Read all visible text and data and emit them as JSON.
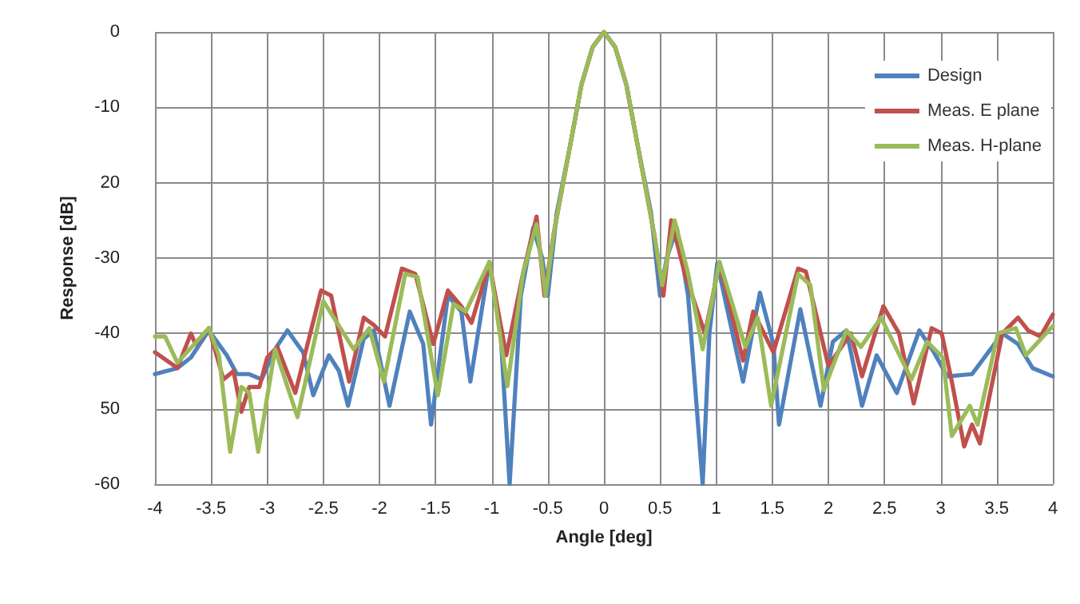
{
  "chart_data": {
    "type": "line",
    "xlabel": "Angle [deg]",
    "ylabel": "Response [dB]",
    "xlim": [
      -4,
      4
    ],
    "xticks": [
      -4,
      -3.5,
      -3,
      -2.5,
      -2,
      -1.5,
      -1,
      -0.5,
      0,
      0.5,
      1,
      1.5,
      2,
      2.5,
      3,
      3.5,
      4
    ],
    "ylim": [
      -60,
      0
    ],
    "yticks": [
      0,
      -10,
      {
        "value": -20,
        "label": "20"
      },
      -30,
      -40,
      {
        "value": -50,
        "label": "50"
      },
      -60
    ],
    "grid": true,
    "legend": "top right",
    "marker": "none",
    "line_style": "solid",
    "series": [
      {
        "name": "Design",
        "color": "#4f81bd",
        "x": [
          -4,
          -3.8,
          -3.68,
          -3.52,
          -3.36,
          -3.27,
          -3.16,
          -3.05,
          -2.93,
          -2.82,
          -2.68,
          -2.59,
          -2.45,
          -2.36,
          -2.28,
          -2.14,
          -2.05,
          -1.91,
          -1.73,
          -1.61,
          -1.54,
          -1.39,
          -1.27,
          -1.19,
          -1.02,
          -0.92,
          -0.84,
          -0.74,
          -0.63,
          -0.55,
          -0.5,
          -0.42,
          -0.3,
          -0.2,
          -0.1,
          0,
          0.1,
          0.2,
          0.3,
          0.42,
          0.5,
          0.56,
          0.65,
          0.75,
          0.88,
          0.94,
          1.01,
          1.24,
          1.39,
          1.51,
          1.56,
          1.75,
          1.93,
          2.04,
          2.16,
          2.3,
          2.43,
          2.61,
          2.81,
          2.94,
          3.06,
          3.28,
          3.55,
          3.69,
          3.82,
          4
        ],
        "values": [
          -45.4,
          -44.6,
          -43.2,
          -39.6,
          -42.9,
          -45.4,
          -45.4,
          -46.1,
          -42.1,
          -39.6,
          -42.5,
          -48.2,
          -42.9,
          -45,
          -49.6,
          -40.7,
          -39.6,
          -49.6,
          -37.1,
          -41.4,
          -52.1,
          -35,
          -37.1,
          -46.4,
          -30.5,
          -40,
          -60,
          -35,
          -26,
          -30,
          -35,
          -24,
          -15,
          -7,
          -2,
          0,
          -2,
          -7,
          -15,
          -24,
          -35,
          -30,
          -26,
          -35,
          -60,
          -40,
          -30.7,
          -46.4,
          -34.6,
          -41.4,
          -52.1,
          -36.8,
          -49.6,
          -41.1,
          -39.6,
          -49.6,
          -42.9,
          -47.9,
          -39.6,
          -42.5,
          -45.7,
          -45.4,
          -40,
          -41.4,
          -44.6,
          -45.7
        ]
      },
      {
        "name": "Meas. E plane",
        "color": "#c0504d",
        "x": [
          -4,
          -3.8,
          -3.68,
          -3.64,
          -3.52,
          -3.39,
          -3.3,
          -3.23,
          -3.16,
          -3.07,
          -3,
          -2.91,
          -2.75,
          -2.52,
          -2.43,
          -2.27,
          -2.14,
          -2.05,
          -1.95,
          -1.8,
          -1.68,
          -1.52,
          -1.39,
          -1.27,
          -1.18,
          -1.02,
          -0.87,
          -0.72,
          -0.6,
          -0.53,
          -0.45,
          -0.3,
          -0.2,
          -0.1,
          0,
          0.1,
          0.2,
          0.3,
          0.45,
          0.53,
          0.6,
          0.72,
          0.9,
          1.03,
          1.24,
          1.33,
          1.51,
          1.73,
          1.8,
          2,
          2.2,
          2.3,
          2.49,
          2.63,
          2.76,
          2.92,
          3.01,
          3.1,
          3.21,
          3.28,
          3.35,
          3.55,
          3.69,
          3.78,
          3.89,
          4
        ],
        "values": [
          -42.5,
          -44.6,
          -40,
          -41.4,
          -39.3,
          -46.1,
          -45,
          -50.4,
          -47.1,
          -47.1,
          -43.2,
          -41.8,
          -47.9,
          -34.3,
          -35,
          -46.4,
          -37.9,
          -38.9,
          -40.4,
          -31.4,
          -32.1,
          -41.4,
          -34.3,
          -36.4,
          -38.6,
          -30.7,
          -42.9,
          -32,
          -24.5,
          -35,
          -27,
          -15,
          -7,
          -2,
          0,
          -2,
          -7,
          -15,
          -27,
          -35,
          -25,
          -32,
          -40,
          -30.7,
          -43.6,
          -37.1,
          -42.5,
          -31.4,
          -31.8,
          -44.3,
          -40,
          -45.7,
          -36.4,
          -40,
          -49.3,
          -39.3,
          -40,
          -46.4,
          -55,
          -52.1,
          -54.6,
          -40,
          -37.9,
          -39.6,
          -40.4,
          -37.5
        ]
      },
      {
        "name": "Meas. H-plane",
        "color": "#9bbb59",
        "x": [
          -4,
          -3.91,
          -3.8,
          -3.52,
          -3.43,
          -3.33,
          -3.23,
          -3.16,
          -3.08,
          -2.93,
          -2.73,
          -2.5,
          -2.23,
          -2.09,
          -1.96,
          -1.77,
          -1.66,
          -1.48,
          -1.34,
          -1.23,
          -1.02,
          -0.86,
          -0.72,
          -0.6,
          -0.52,
          -0.45,
          -0.3,
          -0.2,
          -0.1,
          0,
          0.1,
          0.2,
          0.3,
          0.45,
          0.52,
          0.63,
          0.75,
          0.88,
          1.03,
          1.26,
          1.37,
          1.49,
          1.73,
          1.84,
          1.96,
          2.16,
          2.29,
          2.47,
          2.74,
          2.88,
          3.02,
          3.1,
          3.26,
          3.33,
          3.51,
          3.67,
          3.76,
          4
        ],
        "values": [
          -40.4,
          -40.4,
          -43.9,
          -39.3,
          -42.9,
          -55.7,
          -47.1,
          -47.9,
          -55.7,
          -42.1,
          -51.1,
          -35.7,
          -42.1,
          -39.3,
          -46.4,
          -32.1,
          -32.5,
          -48.2,
          -36.1,
          -37.1,
          -30.5,
          -47,
          -32,
          -25.5,
          -35,
          -27,
          -15,
          -7,
          -2,
          0,
          -2,
          -7,
          -15,
          -27,
          -33.6,
          -25,
          -32,
          -42.1,
          -30.5,
          -41.8,
          -37.9,
          -49.6,
          -32.1,
          -33.6,
          -47.5,
          -39.6,
          -41.8,
          -37.9,
          -46.1,
          -41.1,
          -43.2,
          -53.6,
          -49.6,
          -52.1,
          -40,
          -39.3,
          -42.9,
          -39
        ]
      }
    ]
  }
}
